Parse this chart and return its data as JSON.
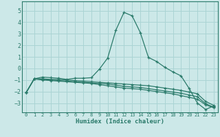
{
  "title": "",
  "xlabel": "Humidex (Indice chaleur)",
  "background_color": "#cce8e8",
  "grid_color": "#aad4d4",
  "line_color": "#2a7a6a",
  "spine_color": "#2a7a6a",
  "xlim": [
    -0.5,
    23.5
  ],
  "ylim": [
    -3.8,
    5.8
  ],
  "yticks": [
    -3,
    -2,
    -1,
    0,
    1,
    2,
    3,
    4,
    5
  ],
  "xticks": [
    0,
    1,
    2,
    3,
    4,
    5,
    6,
    7,
    8,
    9,
    10,
    11,
    12,
    13,
    14,
    15,
    16,
    17,
    18,
    19,
    20,
    21,
    22,
    23
  ],
  "series": [
    {
      "x": [
        0,
        1,
        2,
        3,
        4,
        5,
        6,
        7,
        8,
        9,
        10,
        11,
        12,
        13,
        14,
        15,
        16,
        17,
        18,
        19,
        20,
        21,
        22,
        23
      ],
      "y": [
        -2.1,
        -0.9,
        -0.75,
        -0.8,
        -0.85,
        -0.95,
        -0.85,
        -0.85,
        -0.8,
        -0.05,
        0.9,
        3.3,
        4.85,
        4.55,
        3.1,
        0.95,
        0.6,
        0.1,
        -0.3,
        -0.65,
        -1.75,
        -3.0,
        -3.55,
        -3.25
      ]
    },
    {
      "x": [
        0,
        1,
        2,
        3,
        4,
        5,
        6,
        7,
        8,
        9,
        10,
        11,
        12,
        13,
        14,
        15,
        16,
        17,
        18,
        19,
        20,
        21,
        22,
        23
      ],
      "y": [
        -2.1,
        -0.9,
        -0.9,
        -0.95,
        -0.95,
        -1.0,
        -1.05,
        -1.1,
        -1.15,
        -1.2,
        -1.25,
        -1.3,
        -1.35,
        -1.4,
        -1.45,
        -1.5,
        -1.6,
        -1.7,
        -1.8,
        -1.9,
        -2.05,
        -2.2,
        -2.85,
        -3.2
      ]
    },
    {
      "x": [
        0,
        1,
        2,
        3,
        4,
        5,
        6,
        7,
        8,
        9,
        10,
        11,
        12,
        13,
        14,
        15,
        16,
        17,
        18,
        19,
        20,
        21,
        22,
        23
      ],
      "y": [
        -2.1,
        -0.9,
        -0.95,
        -1.0,
        -1.05,
        -1.1,
        -1.15,
        -1.2,
        -1.25,
        -1.3,
        -1.35,
        -1.45,
        -1.55,
        -1.6,
        -1.65,
        -1.75,
        -1.85,
        -1.95,
        -2.05,
        -2.15,
        -2.3,
        -2.45,
        -3.05,
        -3.35
      ]
    },
    {
      "x": [
        0,
        1,
        2,
        3,
        4,
        5,
        6,
        7,
        8,
        9,
        10,
        11,
        12,
        13,
        14,
        15,
        16,
        17,
        18,
        19,
        20,
        21,
        22,
        23
      ],
      "y": [
        -2.1,
        -0.9,
        -1.0,
        -1.05,
        -1.1,
        -1.15,
        -1.2,
        -1.25,
        -1.3,
        -1.4,
        -1.5,
        -1.6,
        -1.7,
        -1.75,
        -1.8,
        -1.9,
        -2.0,
        -2.1,
        -2.2,
        -2.35,
        -2.5,
        -2.65,
        -3.15,
        -3.4
      ]
    }
  ]
}
